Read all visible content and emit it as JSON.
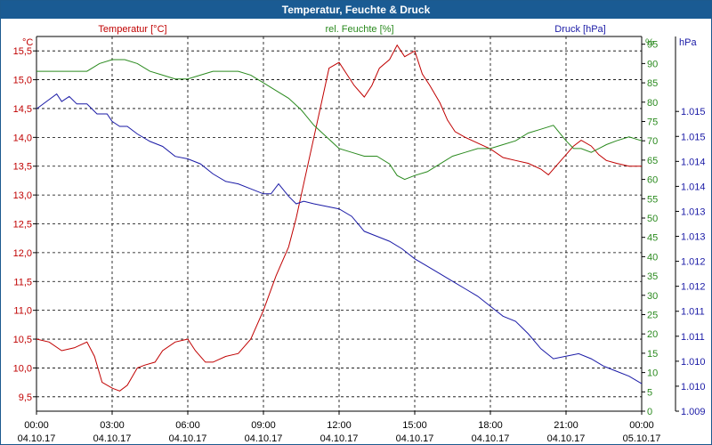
{
  "window": {
    "title": "Temperatur, Feuchte & Druck"
  },
  "chart_data": {
    "type": "line",
    "title": "Temperatur, Feuchte & Druck",
    "grid": true,
    "x_tick_times": [
      "00:00",
      "03:00",
      "06:00",
      "09:00",
      "12:00",
      "15:00",
      "18:00",
      "21:00",
      "00:00"
    ],
    "x_tick_dates": [
      "04.10.17",
      "04.10.17",
      "04.10.17",
      "04.10.17",
      "04.10.17",
      "04.10.17",
      "04.10.17",
      "04.10.17",
      "05.10.17"
    ],
    "x_range_hours": [
      0,
      24
    ],
    "axes": {
      "temperature": {
        "unit": "°C",
        "ylim": [
          9.25,
          15.75
        ],
        "ticks": [
          "9,5",
          "10,0",
          "10,5",
          "11,0",
          "11,5",
          "12,0",
          "12,5",
          "13,0",
          "13,5",
          "14,0",
          "14,5",
          "15,0",
          "15,5"
        ],
        "tick_values": [
          9.5,
          10,
          10.5,
          11,
          11.5,
          12,
          12.5,
          13,
          13.5,
          14,
          14.5,
          15,
          15.5
        ]
      },
      "humidity": {
        "unit": "%",
        "ylim": [
          0,
          97
        ],
        "ticks": [
          "0",
          "5",
          "10",
          "15",
          "20",
          "25",
          "30",
          "35",
          "40",
          "45",
          "50",
          "55",
          "60",
          "65",
          "70",
          "75",
          "80",
          "85",
          "90",
          "95"
        ],
        "tick_values": [
          0,
          5,
          10,
          15,
          20,
          25,
          30,
          35,
          40,
          45,
          50,
          55,
          60,
          65,
          70,
          75,
          80,
          85,
          90,
          95
        ]
      },
      "pressure": {
        "unit": "hPa",
        "ylim": [
          1009.0,
          1016.5
        ],
        "ticks": [
          "1.009",
          "1.010",
          "1.010",
          "1.011",
          "1.011",
          "1.012",
          "1.012",
          "1.013",
          "1.013",
          "1.014",
          "1.014",
          "1.015",
          "1.015"
        ],
        "tick_values": [
          1009.0,
          1009.5,
          1010.0,
          1010.5,
          1011.0,
          1011.5,
          1012.0,
          1012.5,
          1013.0,
          1013.5,
          1014.0,
          1014.5,
          1015.0
        ]
      }
    },
    "series": [
      {
        "name": "Temperatur [°C]",
        "axis": "temperature",
        "color": "#c00000",
        "x": [
          0,
          0.5,
          1,
          1.5,
          2,
          2.3,
          2.6,
          3,
          3.3,
          3.6,
          4,
          4.3,
          4.7,
          5,
          5.5,
          6,
          6.3,
          6.7,
          7,
          7.5,
          8,
          8.5,
          9,
          9.5,
          10,
          10.3,
          10.6,
          11,
          11.3,
          11.6,
          12,
          12.3,
          12.6,
          13,
          13.3,
          13.6,
          14,
          14.3,
          14.6,
          15,
          15.3,
          15.6,
          16,
          16.3,
          16.6,
          17,
          17.5,
          18,
          18.5,
          19,
          19.5,
          20,
          20.3,
          20.6,
          21,
          21.3,
          21.6,
          22,
          22.3,
          22.6,
          23,
          23.5,
          24
        ],
        "values": [
          10.5,
          10.45,
          10.3,
          10.35,
          10.45,
          10.2,
          9.75,
          9.65,
          9.6,
          9.7,
          10.0,
          10.05,
          10.1,
          10.3,
          10.45,
          10.5,
          10.3,
          10.1,
          10.1,
          10.2,
          10.25,
          10.5,
          11.0,
          11.6,
          12.1,
          12.6,
          13.2,
          14.0,
          14.6,
          15.2,
          15.3,
          15.1,
          14.9,
          14.7,
          14.9,
          15.2,
          15.35,
          15.6,
          15.4,
          15.5,
          15.1,
          14.9,
          14.6,
          14.3,
          14.1,
          14.0,
          13.9,
          13.8,
          13.65,
          13.6,
          13.55,
          13.45,
          13.35,
          13.5,
          13.7,
          13.85,
          13.95,
          13.85,
          13.7,
          13.6,
          13.55,
          13.5,
          13.5
        ],
        "x_unit": "hours"
      },
      {
        "name": "rel. Feuchte [%]",
        "axis": "humidity",
        "color": "#2a8a1e",
        "x": [
          0,
          0.5,
          1,
          1.5,
          2,
          2.5,
          3,
          3.5,
          4,
          4.5,
          5,
          5.5,
          6,
          6.5,
          7,
          7.5,
          8,
          8.5,
          9,
          9.5,
          10,
          10.5,
          11,
          11.5,
          12,
          12.5,
          13,
          13.5,
          14,
          14.3,
          14.6,
          15,
          15.5,
          16,
          16.5,
          17,
          17.5,
          18,
          18.5,
          19,
          19.5,
          20,
          20.5,
          21,
          21.3,
          21.6,
          22,
          22.3,
          22.6,
          23,
          23.5,
          24
        ],
        "values": [
          88,
          88,
          88,
          88,
          88,
          90,
          91,
          91,
          90,
          88,
          87,
          86,
          86,
          87,
          88,
          88,
          88,
          87,
          85,
          83,
          81,
          78,
          74,
          71,
          68,
          67,
          66,
          66,
          64,
          61,
          60,
          61,
          62,
          64,
          66,
          67,
          68,
          68,
          69,
          70,
          72,
          73,
          74,
          70,
          68,
          68,
          67,
          68,
          69,
          70,
          71,
          70
        ],
        "x_unit": "hours"
      },
      {
        "name": "Druck [hPa]",
        "axis": "pressure",
        "color": "#1a1aa6",
        "x": [
          0,
          0.4,
          0.8,
          1,
          1.3,
          1.6,
          2,
          2.4,
          2.8,
          3,
          3.3,
          3.6,
          4,
          4.5,
          5,
          5.5,
          6,
          6.5,
          7,
          7.5,
          8,
          8.5,
          9,
          9.3,
          9.6,
          10,
          10.3,
          10.6,
          11,
          11.5,
          12,
          12.5,
          13,
          13.5,
          14,
          14.5,
          15,
          15.5,
          16,
          16.5,
          17,
          17.5,
          18,
          18.5,
          19,
          19.5,
          20,
          20.5,
          21,
          21.5,
          22,
          22.5,
          23,
          23.5,
          24
        ],
        "values": [
          1015.05,
          1015.2,
          1015.35,
          1015.2,
          1015.3,
          1015.15,
          1015.15,
          1014.95,
          1014.95,
          1014.8,
          1014.7,
          1014.7,
          1014.55,
          1014.4,
          1014.3,
          1014.1,
          1014.05,
          1013.95,
          1013.75,
          1013.6,
          1013.55,
          1013.45,
          1013.35,
          1013.35,
          1013.55,
          1013.3,
          1013.15,
          1013.2,
          1013.15,
          1013.1,
          1013.05,
          1012.9,
          1012.6,
          1012.5,
          1012.4,
          1012.25,
          1012.05,
          1011.9,
          1011.75,
          1011.6,
          1011.45,
          1011.3,
          1011.1,
          1010.9,
          1010.8,
          1010.55,
          1010.25,
          1010.05,
          1010.1,
          1010.15,
          1010.05,
          1009.9,
          1009.8,
          1009.7,
          1009.55
        ],
        "x_unit": "hours"
      }
    ]
  }
}
